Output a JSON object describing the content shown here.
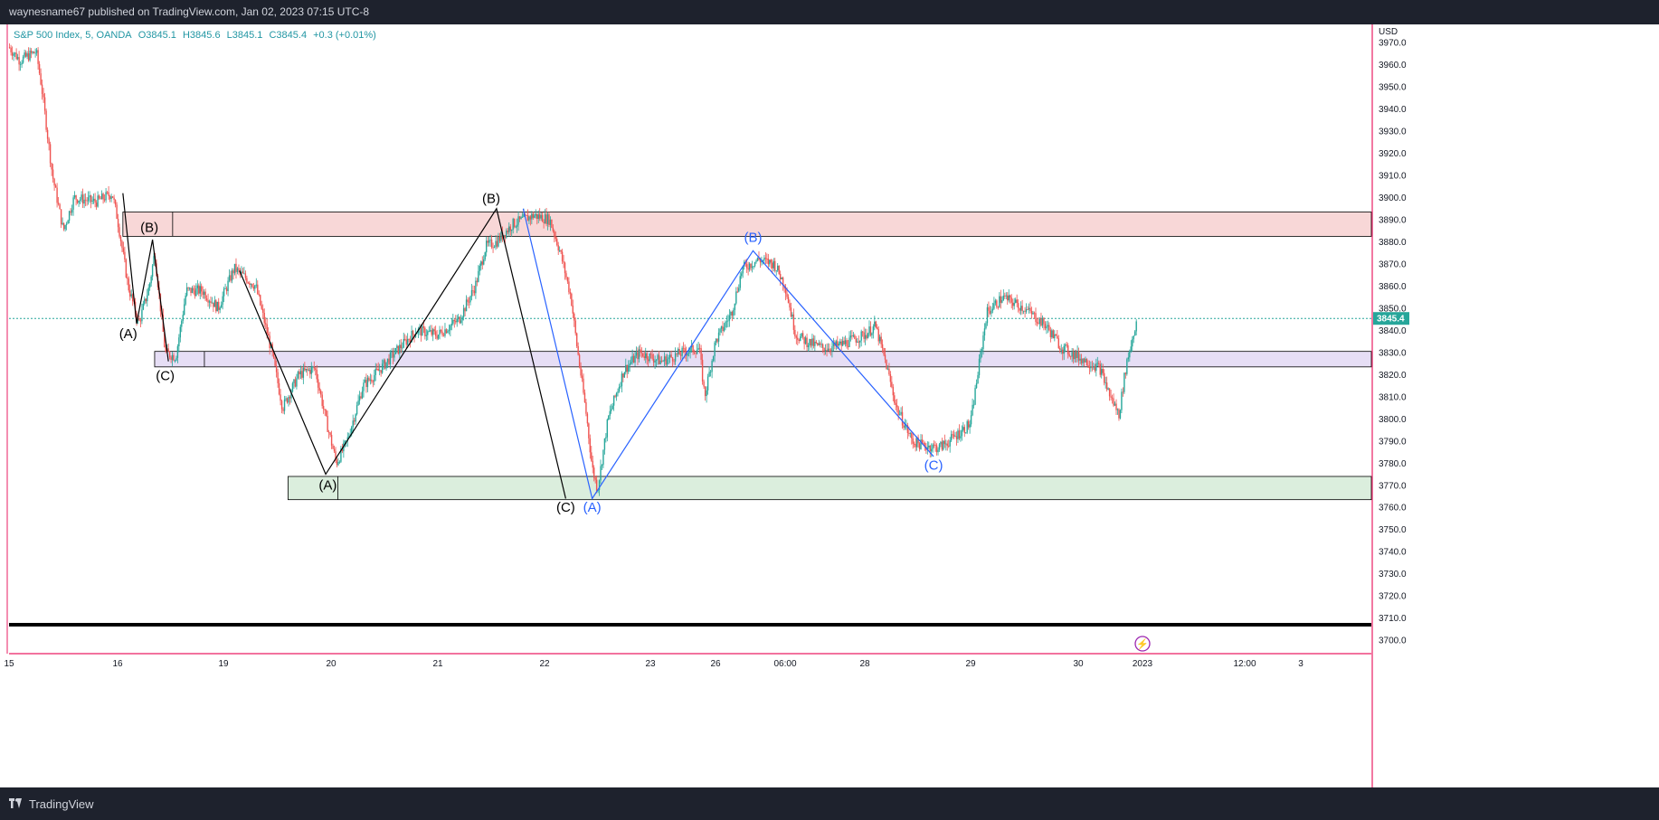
{
  "header": {
    "published": "waynesname67 published on TradingView.com, Jan 02, 2023 07:15 UTC-8"
  },
  "legend": {
    "symbol": "S&P 500 Index, 5, OANDA",
    "open": "O3845.1",
    "high": "H3845.6",
    "low": "L3845.1",
    "close": "C3845.4",
    "change": "+0.3 (+0.01%)"
  },
  "footer": {
    "brand": "TradingView",
    "logo_icon": "tradingview-logo-icon"
  },
  "colors": {
    "up": "#26a69a",
    "down": "#ef5350",
    "wave_black": "#000000",
    "wave_blue": "#2962ff",
    "zone_red": "#f8d7d7",
    "zone_purple": "#e6def5",
    "zone_green": "#dbeedd",
    "price_line": "#26a69a",
    "border_pink": "#e91e63"
  },
  "chart_data": {
    "type": "candlestick",
    "title": "",
    "currency_label": "USD",
    "ylim": [
      3698,
      3975
    ],
    "y_ticks": [
      "3700.0",
      "3710.0",
      "3720.0",
      "3730.0",
      "3740.0",
      "3750.0",
      "3760.0",
      "3770.0",
      "3780.0",
      "3790.0",
      "3800.0",
      "3810.0",
      "3820.0",
      "3830.0",
      "3840.0",
      "3850.0",
      "3860.0",
      "3870.0",
      "3880.0",
      "3890.0",
      "3900.0",
      "3910.0",
      "3920.0",
      "3930.0",
      "3940.0",
      "3950.0",
      "3960.0",
      "3970.0"
    ],
    "x_ticks": [
      {
        "label": "15",
        "t": 0
      },
      {
        "label": "16",
        "t": 1
      },
      {
        "label": "19",
        "t": 2
      },
      {
        "label": "20",
        "t": 3
      },
      {
        "label": "21",
        "t": 4
      },
      {
        "label": "22",
        "t": 5
      },
      {
        "label": "23",
        "t": 6
      },
      {
        "label": "26",
        "t": 6.6
      },
      {
        "label": "06:00",
        "t": 7.25
      },
      {
        "label": "28",
        "t": 8
      },
      {
        "label": "29",
        "t": 9
      },
      {
        "label": "30",
        "t": 10
      },
      {
        "label": "2023",
        "t": 10.6
      },
      {
        "label": "12:00",
        "t": 11.55
      },
      {
        "label": "3",
        "t": 12.05
      }
    ],
    "last_price": 3845.4,
    "last_price_label": "3845.4",
    "price_path": [
      [
        0.0,
        3968
      ],
      [
        0.1,
        3962
      ],
      [
        0.25,
        3966
      ],
      [
        0.3,
        3950
      ],
      [
        0.4,
        3910
      ],
      [
        0.5,
        3885
      ],
      [
        0.6,
        3900
      ],
      [
        0.8,
        3898
      ],
      [
        0.95,
        3902
      ],
      [
        1.0,
        3890
      ],
      [
        1.1,
        3860
      ],
      [
        1.2,
        3843
      ],
      [
        1.3,
        3860
      ],
      [
        1.35,
        3875
      ],
      [
        1.45,
        3830
      ],
      [
        1.55,
        3828
      ],
      [
        1.65,
        3858
      ],
      [
        1.8,
        3858
      ],
      [
        1.95,
        3850
      ],
      [
        2.1,
        3868
      ],
      [
        2.3,
        3860
      ],
      [
        2.45,
        3830
      ],
      [
        2.55,
        3805
      ],
      [
        2.7,
        3820
      ],
      [
        2.85,
        3823
      ],
      [
        2.95,
        3800
      ],
      [
        3.05,
        3780
      ],
      [
        3.15,
        3790
      ],
      [
        3.3,
        3815
      ],
      [
        3.45,
        3822
      ],
      [
        3.6,
        3830
      ],
      [
        3.8,
        3840
      ],
      [
        4.0,
        3838
      ],
      [
        4.2,
        3845
      ],
      [
        4.35,
        3860
      ],
      [
        4.45,
        3878
      ],
      [
        4.55,
        3880
      ],
      [
        4.7,
        3888
      ],
      [
        4.9,
        3892
      ],
      [
        5.05,
        3890
      ],
      [
        5.15,
        3875
      ],
      [
        5.25,
        3855
      ],
      [
        5.3,
        3835
      ],
      [
        5.4,
        3800
      ],
      [
        5.45,
        3778
      ],
      [
        5.5,
        3768
      ],
      [
        5.6,
        3800
      ],
      [
        5.75,
        3822
      ],
      [
        5.9,
        3830
      ],
      [
        6.1,
        3826
      ],
      [
        6.3,
        3830
      ],
      [
        6.45,
        3832
      ],
      [
        6.5,
        3810
      ],
      [
        6.6,
        3835
      ],
      [
        6.75,
        3848
      ],
      [
        6.85,
        3868
      ],
      [
        7.0,
        3872
      ],
      [
        7.15,
        3870
      ],
      [
        7.25,
        3860
      ],
      [
        7.35,
        3838
      ],
      [
        7.45,
        3835
      ],
      [
        7.6,
        3832
      ],
      [
        7.75,
        3833
      ],
      [
        8.0,
        3838
      ],
      [
        8.1,
        3842
      ],
      [
        8.2,
        3825
      ],
      [
        8.3,
        3805
      ],
      [
        8.45,
        3790
      ],
      [
        8.55,
        3788
      ],
      [
        8.7,
        3787
      ],
      [
        8.8,
        3790
      ],
      [
        9.0,
        3798
      ],
      [
        9.05,
        3815
      ],
      [
        9.15,
        3848
      ],
      [
        9.3,
        3855
      ],
      [
        9.5,
        3850
      ],
      [
        9.7,
        3842
      ],
      [
        9.85,
        3832
      ],
      [
        10.0,
        3828
      ],
      [
        10.2,
        3823
      ],
      [
        10.3,
        3810
      ],
      [
        10.38,
        3802
      ],
      [
        10.45,
        3825
      ],
      [
        10.55,
        3845.4
      ]
    ],
    "zones": [
      {
        "name": "resistance-zone",
        "y1": 3882.5,
        "y2": 3893.5,
        "t1": 1.05,
        "t2": 12.8,
        "color": "#f8d7d7"
      },
      {
        "name": "pivot-zone",
        "y1": 3823.5,
        "y2": 3830.5,
        "t1": 1.35,
        "t2": 12.8,
        "color": "#e6def5"
      },
      {
        "name": "support-zone",
        "y1": 3763.5,
        "y2": 3774,
        "t1": 2.6,
        "t2": 12.8,
        "color": "#dbeedd"
      }
    ],
    "wave_lines": [
      {
        "color": "#000000",
        "points": [
          [
            1.05,
            3902
          ],
          [
            1.18,
            3843
          ],
          [
            1.33,
            3881
          ],
          [
            1.48,
            3826
          ]
        ]
      },
      {
        "color": "#000000",
        "points": [
          [
            2.15,
            3867
          ],
          [
            2.95,
            3775
          ],
          [
            4.55,
            3895
          ],
          [
            5.2,
            3764
          ]
        ]
      },
      {
        "color": "#2962ff",
        "points": [
          [
            4.8,
            3895
          ],
          [
            5.45,
            3764
          ],
          [
            6.95,
            3876
          ],
          [
            8.65,
            3783
          ]
        ]
      }
    ],
    "wave_labels": [
      {
        "text": "(B)",
        "t": 1.3,
        "y": 3884.5,
        "color": "#000000"
      },
      {
        "text": "(A)",
        "t": 1.1,
        "y": 3836.5,
        "color": "#000000"
      },
      {
        "text": "(C)",
        "t": 1.45,
        "y": 3817.5,
        "color": "#000000"
      },
      {
        "text": "(B)",
        "t": 4.5,
        "y": 3897.5,
        "color": "#000000"
      },
      {
        "text": "(A)",
        "t": 2.97,
        "y": 3768,
        "color": "#000000"
      },
      {
        "text": "(C)",
        "t": 5.2,
        "y": 3758,
        "color": "#000000"
      },
      {
        "text": "(A)",
        "t": 5.45,
        "y": 3758,
        "color": "#2962ff"
      },
      {
        "text": "(B)",
        "t": 6.95,
        "y": 3880,
        "color": "#2962ff"
      },
      {
        "text": "(C)",
        "t": 8.65,
        "y": 3777,
        "color": "#2962ff"
      }
    ]
  }
}
